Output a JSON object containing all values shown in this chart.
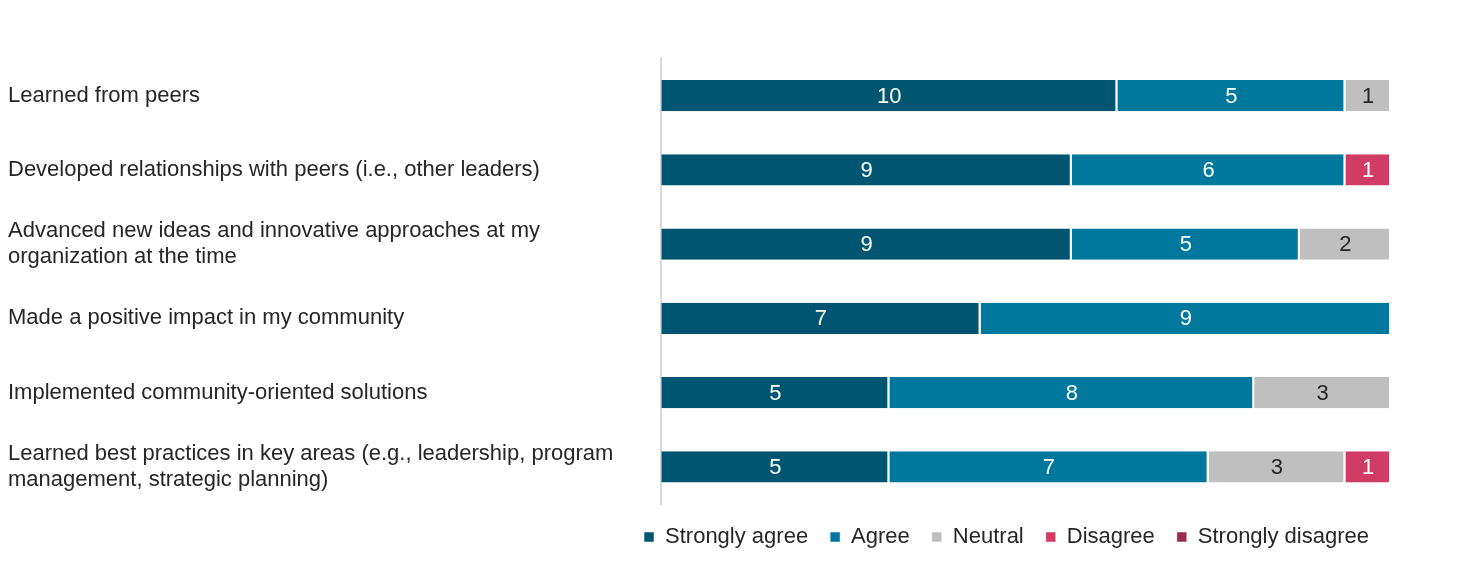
{
  "chart_data": {
    "type": "bar",
    "orientation": "horizontal",
    "stacked": true,
    "data_labels": true,
    "legend": "bottom",
    "grid": false,
    "tick_labels": "y",
    "xlim": [
      0,
      16
    ],
    "categories": [
      "Learned from peers",
      "Developed relationships with peers (i.e., other leaders)",
      "Advanced new ideas and innovative approaches at my organization at the time",
      "Made a positive impact in my community",
      "Implemented community-oriented solutions",
      "Learned best practices in key areas (e.g., leadership, program management, strategic planning)"
    ],
    "series": [
      {
        "name": "Strongly agree",
        "color": "#005670",
        "values": [
          10,
          9,
          9,
          7,
          5,
          5
        ]
      },
      {
        "name": "Agree",
        "color": "#00789e",
        "values": [
          5,
          6,
          5,
          9,
          8,
          7
        ]
      },
      {
        "name": "Neutral",
        "color": "#bfbfbf",
        "values": [
          1,
          null,
          2,
          null,
          3,
          3
        ]
      },
      {
        "name": "Disagree",
        "color": "#d03c66",
        "values": [
          null,
          1,
          null,
          null,
          null,
          1
        ]
      },
      {
        "name": "Strongly disagree",
        "color": "#9b2a50",
        "values": [
          null,
          null,
          null,
          null,
          null,
          null
        ]
      }
    ]
  }
}
